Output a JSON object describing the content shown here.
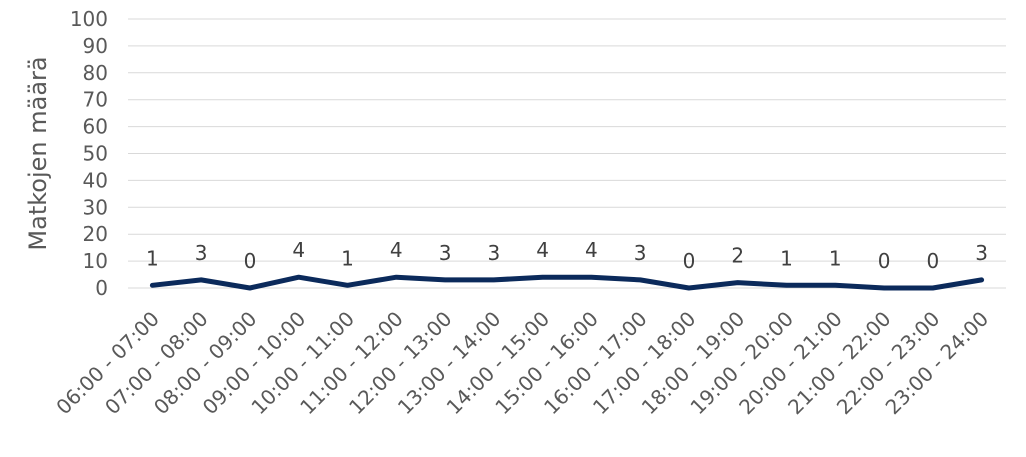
{
  "chart_data": {
    "type": "line",
    "title": "",
    "xlabel": "",
    "ylabel": "Matkojen määrä",
    "ylim": [
      0,
      100
    ],
    "yticks": [
      "0",
      "10",
      "20",
      "30",
      "40",
      "50",
      "60",
      "70",
      "80",
      "90",
      "100"
    ],
    "grid": true,
    "legend": "none",
    "line_color": "#0b2a5b",
    "categories": [
      "06:00 - 07:00",
      "07:00 - 08:00",
      "08:00 - 09:00",
      "09:00 - 10:00",
      "10:00 - 11:00",
      "11:00 - 12:00",
      "12:00 - 13:00",
      "13:00 - 14:00",
      "14:00 - 15:00",
      "15:00 - 16:00",
      "16:00 - 17:00",
      "17:00 - 18:00",
      "18:00 - 19:00",
      "19:00 - 20:00",
      "20:00 - 21:00",
      "21:00 - 22:00",
      "22:00 - 23:00",
      "23:00 - 24:00"
    ],
    "values": [
      1,
      3,
      0,
      4,
      1,
      4,
      3,
      3,
      4,
      4,
      3,
      0,
      2,
      1,
      1,
      0,
      0,
      3
    ]
  }
}
